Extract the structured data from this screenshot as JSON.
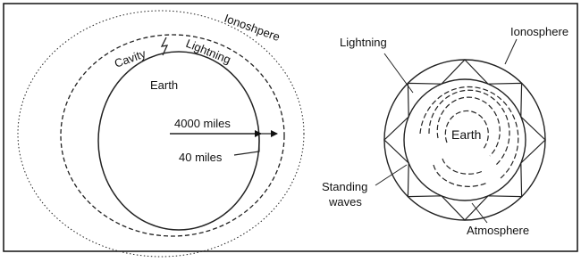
{
  "left": {
    "ionosphere": "Ionoshpere",
    "cavity": "Cavity",
    "lightning": "Lightning",
    "earth": "Earth",
    "radius": "4000 miles",
    "height": "40 miles"
  },
  "right": {
    "lightning": "Lightning",
    "ionosphere": "Ionosphere",
    "earth": "Earth",
    "standing_waves": [
      "Standing",
      "waves"
    ],
    "atmosphere": "Atmosphere"
  }
}
